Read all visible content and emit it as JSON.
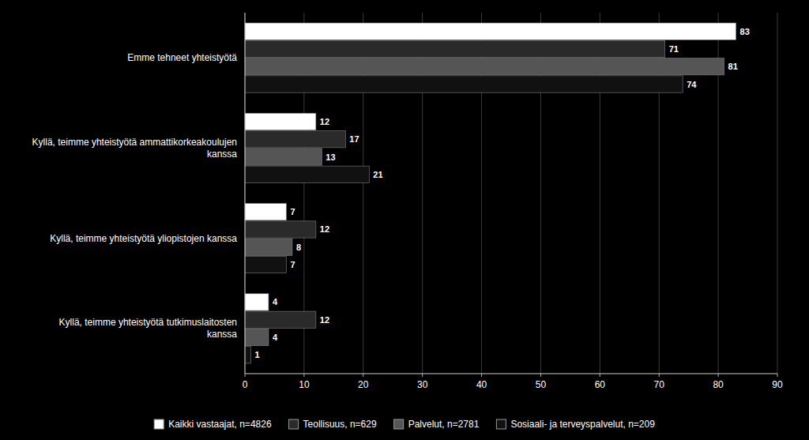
{
  "chart_data": {
    "type": "bar",
    "orientation": "horizontal",
    "categories": [
      "Emme tehneet yhteistyötä",
      "Kyllä, teimme yhteistyötä ammattikorkeakoulujen\nkanssa",
      "Kyllä, teimme yhteistyötä yliopistojen kanssa",
      "Kyllä, teimme yhteistyötä tutkimuslaitosten\nkanssa"
    ],
    "series": [
      {
        "name": "Kaikki vastaajat, n=4826",
        "color": "#ffffff",
        "values": [
          83,
          12,
          7,
          4
        ]
      },
      {
        "name": "Teollisuus, n=629",
        "color": "#2a2a2a",
        "values": [
          71,
          17,
          12,
          12
        ]
      },
      {
        "name": "Palvelut, n=2781",
        "color": "#555555",
        "values": [
          81,
          13,
          8,
          4
        ]
      },
      {
        "name": "Sosiaali- ja terveyspalvelut, n=209",
        "color": "#111111",
        "values": [
          74,
          21,
          7,
          1
        ]
      }
    ],
    "xlim": [
      0,
      90
    ],
    "xticks": [
      0,
      10,
      20,
      30,
      40,
      50,
      60,
      70,
      80,
      90
    ],
    "grid": true,
    "legend": "bottom",
    "data_labels": true
  }
}
